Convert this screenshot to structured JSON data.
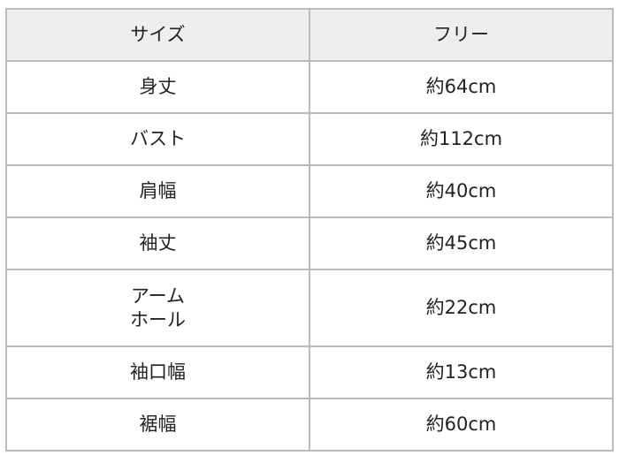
{
  "header": {
    "label": "サイズ",
    "value": "フリー"
  },
  "rows": [
    {
      "label": "身丈",
      "value": "約64cm"
    },
    {
      "label": "バスト",
      "value": "約112cm"
    },
    {
      "label": "肩幅",
      "value": "約40cm"
    },
    {
      "label": "袖丈",
      "value": "約45cm"
    },
    {
      "label_line1": "アーム",
      "label_line2": "ホール",
      "value": "約22cm"
    },
    {
      "label": "袖口幅",
      "value": "約13cm"
    },
    {
      "label": "裾幅",
      "value": "約60cm"
    }
  ],
  "colors": {
    "header_bg": "#efeeee",
    "border": "#bbbbbb"
  }
}
